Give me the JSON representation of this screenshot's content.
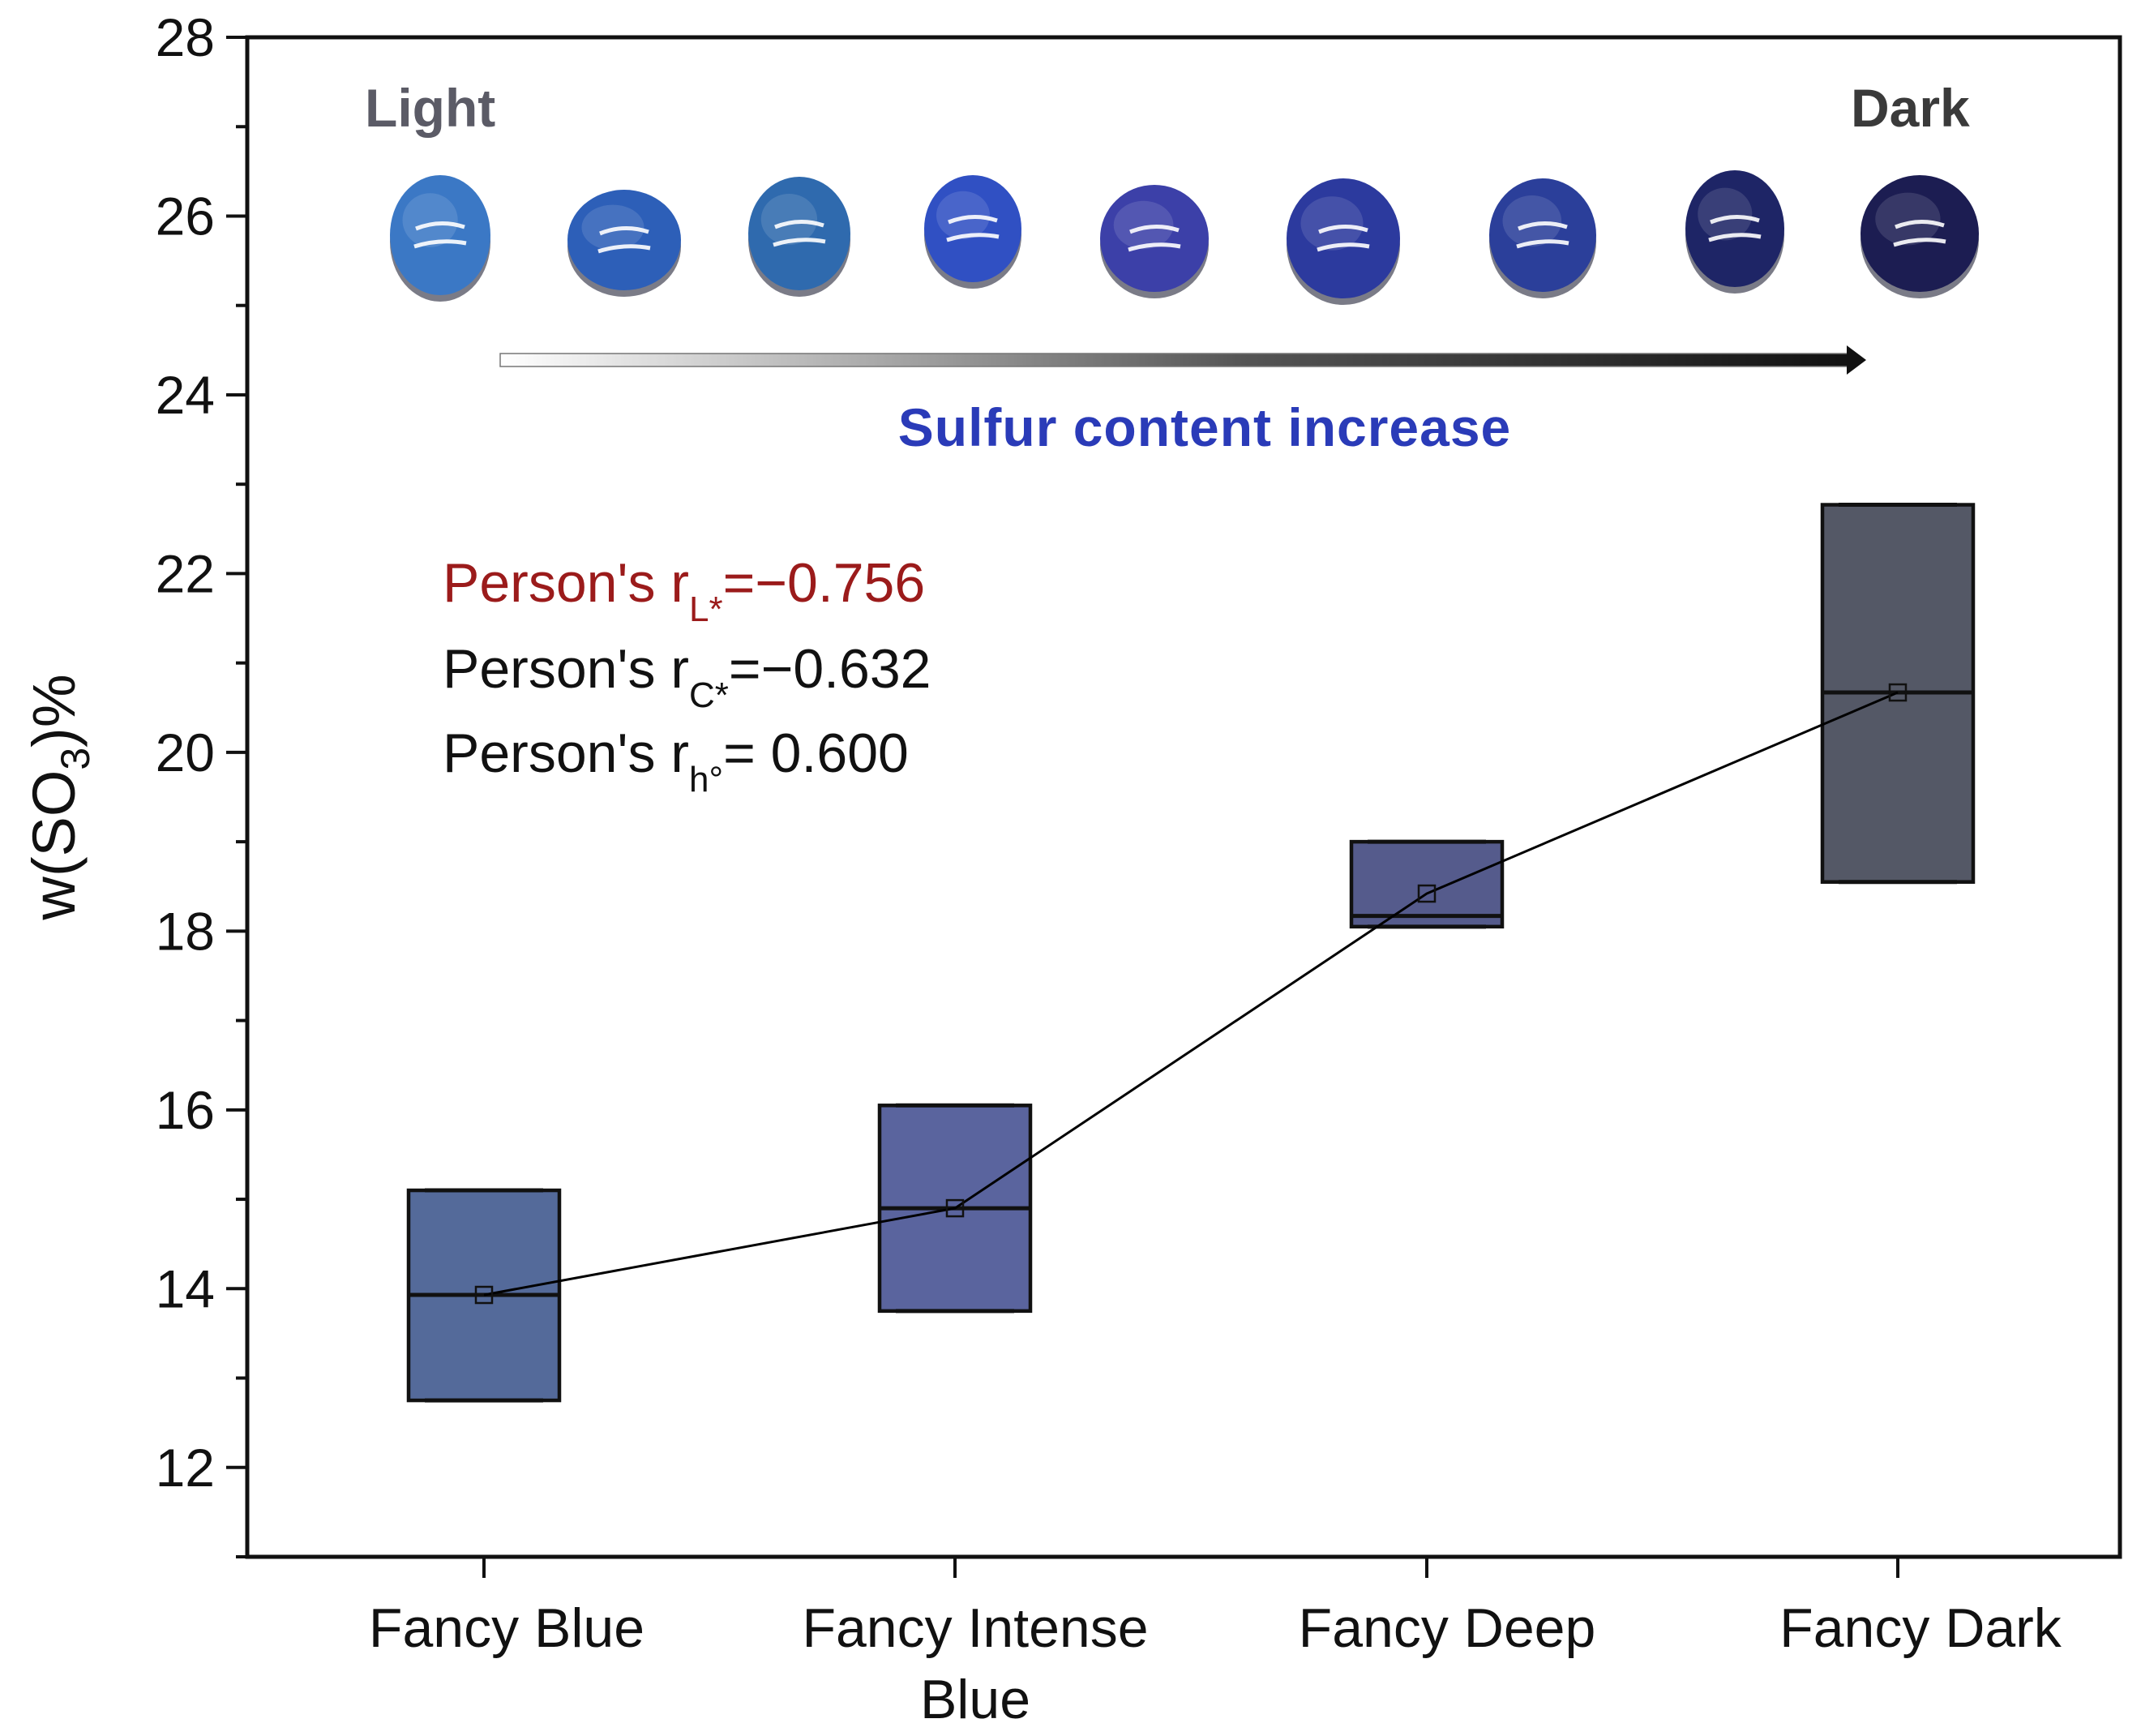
{
  "chart_data": {
    "type": "box",
    "ylabel": "w(SO3)%",
    "ylabel_parts": {
      "main": "w(SO",
      "sub": "3",
      "tail": ")%"
    },
    "ylim": [
      11,
      28
    ],
    "yticks": [
      12,
      14,
      16,
      18,
      20,
      22,
      24,
      26,
      28
    ],
    "categories": [
      "Fancy Blue",
      "Fancy Intense Blue",
      "Fancy Deep",
      "Fancy Dark"
    ],
    "category_label_lines": [
      [
        "Fancy Blue"
      ],
      [
        "Fancy Intense",
        "Blue"
      ],
      [
        "Fancy Deep"
      ],
      [
        "Fancy Dark"
      ]
    ],
    "boxes": [
      {
        "category": "Fancy Blue",
        "q1": 12.75,
        "median": 13.93,
        "q3": 15.1,
        "mean": 13.93,
        "color": "#546a9a"
      },
      {
        "category": "Fancy Intense Blue",
        "q1": 13.75,
        "median": 14.9,
        "q3": 16.05,
        "mean": 14.9,
        "color": "#5a649e"
      },
      {
        "category": "Fancy Deep",
        "q1": 18.05,
        "median": 18.17,
        "q3": 19.0,
        "mean": 18.42,
        "color": "#555b8c"
      },
      {
        "category": "Fancy Dark",
        "q1": 18.55,
        "median": 20.67,
        "q3": 22.77,
        "mean": 20.67,
        "color": "#545866"
      }
    ],
    "mean_line": {
      "values": [
        13.93,
        14.9,
        18.42,
        20.67
      ],
      "color": "#000000"
    }
  },
  "labels": {
    "light": "Light",
    "dark": "Dark",
    "arrow_text": "Sulfur content increase"
  },
  "stats": [
    {
      "prefix": "Person's r",
      "sub": "L*",
      "value": "=−0.756",
      "color": "#9b1b1b"
    },
    {
      "prefix": "Person's r",
      "sub": "C*",
      "value": "=−0.632",
      "color": "#111111"
    },
    {
      "prefix": "Person's r",
      "sub": "h°",
      "value": "= 0.600",
      "color": "#111111"
    }
  ],
  "gems": [
    {
      "name": "gem-1",
      "color": "#3b78c5"
    },
    {
      "name": "gem-2",
      "color": "#2d5fb8"
    },
    {
      "name": "gem-3",
      "color": "#2f6aae"
    },
    {
      "name": "gem-4",
      "color": "#3050c3"
    },
    {
      "name": "gem-5",
      "color": "#3c40a8"
    },
    {
      "name": "gem-6",
      "color": "#2c3a9e"
    },
    {
      "name": "gem-7",
      "color": "#2b3f9a"
    },
    {
      "name": "gem-8",
      "color": "#1e2566"
    },
    {
      "name": "gem-9",
      "color": "#1c1d52"
    }
  ],
  "colors": {
    "light_label": "#5b5b66",
    "dark_label": "#3a3a3a",
    "arrow_text": "#2a3bb8"
  }
}
